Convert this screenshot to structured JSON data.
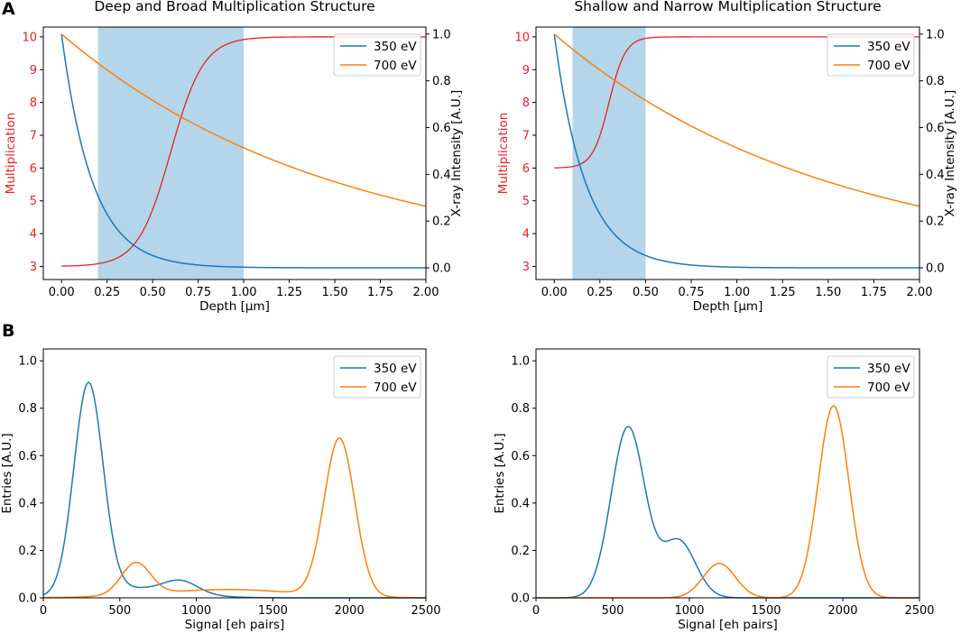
{
  "panel_labels": [
    "A",
    "B"
  ],
  "legend_labels": [
    "350 eV",
    "700 eV"
  ],
  "colors": {
    "s350": "#1f77b4",
    "s700": "#ff7f0e",
    "mult": "#e8202a",
    "band": "#b4d5ea"
  },
  "chart_data": [
    {
      "type": "line",
      "title": "Deep and Broad Multiplication Structure",
      "xlabel": "Depth [μm]",
      "ylabel_left": "Multiplication",
      "ylabel_right": "X-ray Intensity [A.U.]",
      "xlim": [
        -0.1,
        2.0
      ],
      "ylim_left": [
        2.6,
        10.3
      ],
      "ylim_right": [
        -0.05,
        1.03
      ],
      "xticks": [
        "0.00",
        "0.25",
        "0.50",
        "0.75",
        "1.00",
        "1.25",
        "1.50",
        "1.75",
        "2.00"
      ],
      "yticks_left": [
        "3",
        "4",
        "5",
        "6",
        "7",
        "8",
        "9",
        "10"
      ],
      "yticks_right": [
        "0.0",
        "0.2",
        "0.4",
        "0.6",
        "0.8",
        "1.0"
      ],
      "shaded_region": [
        0.2,
        1.0
      ],
      "multiplication": {
        "low": 3,
        "high": 10,
        "center": 0.6,
        "width": 0.09
      },
      "series": [
        {
          "name": "350 eV",
          "attenuation_length_um": 0.17
        },
        {
          "name": "700 eV",
          "attenuation_length_um": 1.5
        }
      ]
    },
    {
      "type": "line",
      "title": "Shallow and Narrow Multiplication Structure",
      "xlabel": "Depth [μm]",
      "ylabel_left": "Multiplication",
      "ylabel_right": "X-ray Intensity [A.U.]",
      "xlim": [
        -0.1,
        2.0
      ],
      "ylim_left": [
        2.6,
        10.3
      ],
      "ylim_right": [
        -0.05,
        1.03
      ],
      "xticks": [
        "0.00",
        "0.25",
        "0.50",
        "0.75",
        "1.00",
        "1.25",
        "1.50",
        "1.75",
        "2.00"
      ],
      "yticks_left": [
        "3",
        "4",
        "5",
        "6",
        "7",
        "8",
        "9",
        "10"
      ],
      "yticks_right": [
        "0.0",
        "0.2",
        "0.4",
        "0.6",
        "0.8",
        "1.0"
      ],
      "shaded_region": [
        0.1,
        0.5
      ],
      "multiplication": {
        "low": 6,
        "high": 10,
        "center": 0.3,
        "width": 0.045
      },
      "series": [
        {
          "name": "350 eV",
          "attenuation_length_um": 0.17
        },
        {
          "name": "700 eV",
          "attenuation_length_um": 1.5
        }
      ]
    },
    {
      "type": "line",
      "title": "",
      "xlabel": "Signal [eh pairs]",
      "ylabel": "Entries [A.U.]",
      "xlim": [
        0,
        2500
      ],
      "ylim": [
        0,
        1.05
      ],
      "xticks": [
        "0",
        "500",
        "1000",
        "1500",
        "2000",
        "2500"
      ],
      "yticks": [
        "0.0",
        "0.2",
        "0.4",
        "0.6",
        "0.8",
        "1.0"
      ],
      "series": [
        {
          "name": "350 eV",
          "baseline": 0,
          "components": [
            {
              "mu": 295,
              "sigma": 95,
              "amp": 0.885
            },
            {
              "mu": 900,
              "sigma": 110,
              "amp": 0.05
            },
            {
              "mu": 600,
              "sigma": 300,
              "amp": 0.04
            }
          ]
        },
        {
          "name": "700 eV",
          "baseline": 0,
          "components": [
            {
              "mu": 1935,
              "sigma": 100,
              "amp": 0.665
            },
            {
              "mu": 605,
              "sigma": 95,
              "amp": 0.135
            },
            {
              "mu": 1200,
              "sigma": 450,
              "amp": 0.035
            }
          ]
        }
      ]
    },
    {
      "type": "line",
      "title": "",
      "xlabel": "Signal [eh pairs]",
      "ylabel": "Entries [A.U.]",
      "xlim": [
        0,
        2500
      ],
      "ylim": [
        0,
        1.05
      ],
      "xticks": [
        "0",
        "500",
        "1000",
        "1500",
        "2000",
        "2500"
      ],
      "yticks": [
        "0.0",
        "0.2",
        "0.4",
        "0.6",
        "0.8",
        "1.0"
      ],
      "series": [
        {
          "name": "350 eV",
          "baseline": 0,
          "components": [
            {
              "mu": 600,
              "sigma": 110,
              "amp": 0.72
            },
            {
              "mu": 930,
              "sigma": 110,
              "amp": 0.24
            }
          ]
        },
        {
          "name": "700 eV",
          "baseline": 0,
          "components": [
            {
              "mu": 1940,
              "sigma": 100,
              "amp": 0.81
            },
            {
              "mu": 1195,
              "sigma": 105,
              "amp": 0.145
            }
          ]
        }
      ]
    }
  ]
}
